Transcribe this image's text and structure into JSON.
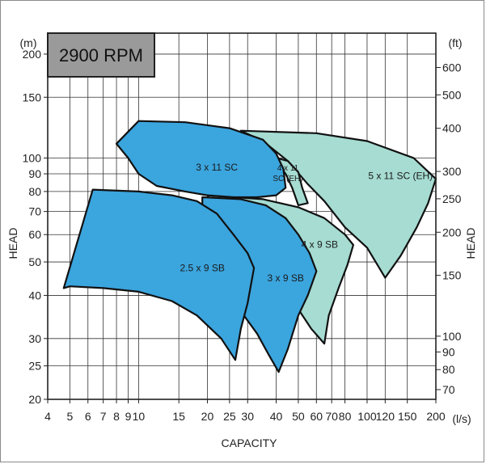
{
  "chart_data": {
    "type": "area",
    "title": "2900 RPM",
    "xlabel": "CAPACITY",
    "ylabel_left": "HEAD",
    "ylabel_right": "HEAD",
    "x_unit": "(l/s)",
    "y_unit_left": "(m)",
    "y_unit_right": "(ft)",
    "x_scale": "log",
    "y_scale": "log",
    "xlim": [
      4,
      200
    ],
    "ylim": [
      20,
      230
    ],
    "grid": true,
    "x_ticks": [
      {
        "v": 4,
        "label": "4"
      },
      {
        "v": 5,
        "label": "5"
      },
      {
        "v": 6,
        "label": "6"
      },
      {
        "v": 7,
        "label": "7"
      },
      {
        "v": 8,
        "label": "8"
      },
      {
        "v": 9,
        "label": "9"
      },
      {
        "v": 10,
        "label": "10"
      },
      {
        "v": 15,
        "label": "15"
      },
      {
        "v": 20,
        "label": "20"
      },
      {
        "v": 25,
        "label": "25"
      },
      {
        "v": 30,
        "label": "30"
      },
      {
        "v": 40,
        "label": "40"
      },
      {
        "v": 50,
        "label": "50"
      },
      {
        "v": 60,
        "label": "60"
      },
      {
        "v": 70,
        "label": "70"
      },
      {
        "v": 80,
        "label": "80"
      },
      {
        "v": 100,
        "label": "100"
      },
      {
        "v": 120,
        "label": "120"
      },
      {
        "v": 150,
        "label": "150"
      },
      {
        "v": 200,
        "label": "200"
      }
    ],
    "y_ticks_left": [
      {
        "v": 20,
        "label": "20"
      },
      {
        "v": 25,
        "label": "25"
      },
      {
        "v": 30,
        "label": "30"
      },
      {
        "v": 40,
        "label": "40"
      },
      {
        "v": 50,
        "label": "50"
      },
      {
        "v": 60,
        "label": "60"
      },
      {
        "v": 70,
        "label": "70"
      },
      {
        "v": 80,
        "label": "80"
      },
      {
        "v": 90,
        "label": "90"
      },
      {
        "v": 100,
        "label": "100"
      },
      {
        "v": 150,
        "label": "150"
      },
      {
        "v": 200,
        "label": "200"
      }
    ],
    "y_ticks_right": [
      {
        "v": 70,
        "label": "70"
      },
      {
        "v": 80,
        "label": "80"
      },
      {
        "v": 90,
        "label": "90"
      },
      {
        "v": 100,
        "label": "100"
      },
      {
        "v": 150,
        "label": "150"
      },
      {
        "v": 200,
        "label": "200"
      },
      {
        "v": 250,
        "label": "250"
      },
      {
        "v": 300,
        "label": "300"
      },
      {
        "v": 400,
        "label": "400"
      },
      {
        "v": 500,
        "label": "500"
      },
      {
        "v": 600,
        "label": "600"
      }
    ],
    "ft_per_m": 3.28084,
    "regions": [
      {
        "name": "5 x 11 SC (EH)",
        "color": "#a6dcd2",
        "label_at": [
          140,
          87
        ],
        "points": [
          [
            28,
            120
          ],
          [
            60,
            118
          ],
          [
            100,
            112
          ],
          [
            160,
            100
          ],
          [
            200,
            87
          ],
          [
            185,
            74
          ],
          [
            165,
            63
          ],
          [
            140,
            52
          ],
          [
            120,
            45
          ],
          [
            100,
            55
          ],
          [
            80,
            63
          ],
          [
            65,
            75
          ],
          [
            55,
            84
          ],
          [
            45,
            98
          ],
          [
            35,
            112
          ]
        ]
      },
      {
        "name": "4 x 9 SB",
        "color": "#a6dcd2",
        "label_at": [
          62,
          55
        ],
        "points": [
          [
            20,
            78
          ],
          [
            35,
            76
          ],
          [
            50,
            72
          ],
          [
            65,
            67
          ],
          [
            80,
            60
          ],
          [
            87,
            56
          ],
          [
            82,
            49
          ],
          [
            75,
            42
          ],
          [
            68,
            35
          ],
          [
            65,
            29
          ],
          [
            57,
            32
          ],
          [
            48,
            38
          ],
          [
            40,
            45
          ],
          [
            33,
            53
          ],
          [
            26,
            62
          ],
          [
            22,
            70
          ]
        ]
      },
      {
        "name": "4 x 11 SC (EH)",
        "color": "#a6dcd2",
        "label_at": [
          45,
          89
        ],
        "points": [
          [
            38,
            101
          ],
          [
            45,
            98
          ],
          [
            50,
            91
          ],
          [
            52,
            82
          ],
          [
            55,
            74
          ],
          [
            50,
            73
          ],
          [
            47,
            82
          ],
          [
            44,
            90
          ],
          [
            40,
            98
          ]
        ]
      },
      {
        "name": "3 x 11 SC",
        "color": "#3ba5de",
        "label_at": [
          22,
          92
        ],
        "points": [
          [
            10,
            128
          ],
          [
            16,
            127
          ],
          [
            25,
            122
          ],
          [
            35,
            113
          ],
          [
            40,
            103
          ],
          [
            43,
            93
          ],
          [
            44,
            82
          ],
          [
            40,
            78
          ],
          [
            33,
            77
          ],
          [
            26,
            77
          ],
          [
            20,
            78
          ],
          [
            16,
            80
          ],
          [
            12,
            83
          ],
          [
            10,
            90
          ],
          [
            9,
            100
          ],
          [
            8,
            110
          ]
        ]
      },
      {
        "name": "3 x 9 SB",
        "color": "#3ba5de",
        "label_at": [
          44,
          44
        ],
        "points": [
          [
            19,
            77
          ],
          [
            28,
            76
          ],
          [
            36,
            73
          ],
          [
            44,
            67
          ],
          [
            50,
            60
          ],
          [
            56,
            53
          ],
          [
            60,
            47
          ],
          [
            55,
            40
          ],
          [
            50,
            35
          ],
          [
            45,
            28
          ],
          [
            41,
            24
          ],
          [
            37,
            27
          ],
          [
            33,
            31
          ],
          [
            28,
            36
          ],
          [
            23,
            42
          ],
          [
            21,
            49
          ],
          [
            20,
            57
          ],
          [
            19,
            68
          ]
        ]
      },
      {
        "name": "2.5 x 9 SB",
        "color": "#3ba5de",
        "label_at": [
          19,
          47
        ],
        "points": [
          [
            6.3,
            81
          ],
          [
            10,
            80
          ],
          [
            14,
            78
          ],
          [
            18,
            75
          ],
          [
            22,
            69
          ],
          [
            26,
            60
          ],
          [
            30,
            53
          ],
          [
            32,
            48
          ],
          [
            30,
            38
          ],
          [
            28,
            32
          ],
          [
            26.5,
            26
          ],
          [
            23,
            30
          ],
          [
            18,
            35
          ],
          [
            14,
            38.5
          ],
          [
            10,
            41
          ],
          [
            7,
            42
          ],
          [
            5,
            42.5
          ],
          [
            4.7,
            42
          ]
        ]
      }
    ]
  }
}
